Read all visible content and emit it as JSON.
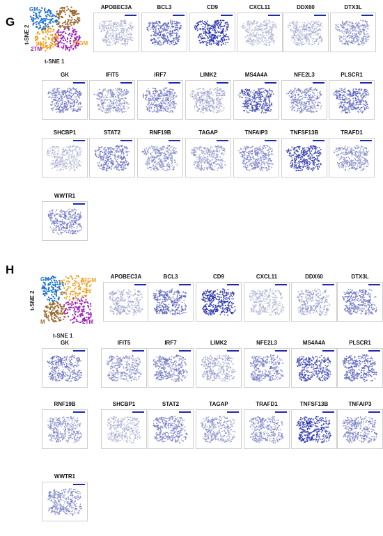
{
  "panel_g": {
    "letter": "G",
    "x_axis": "t-SNE 1",
    "y_axis": "t-SNE 2",
    "clusters": [
      {
        "label": "GM",
        "color": "#1a6fd1"
      },
      {
        "label": "M",
        "color": "#9b6a2f"
      },
      {
        "label": "2TGM",
        "color": "#f0a020"
      },
      {
        "label": "2TM",
        "color": "#9a1fb5"
      }
    ],
    "genes": [
      {
        "name": "APOBEC3A",
        "level": 0.12
      },
      {
        "name": "BCL3",
        "level": 0.6
      },
      {
        "name": "CD9",
        "level": 0.92
      },
      {
        "name": "CXCL11",
        "level": 0.08
      },
      {
        "name": "DDX60",
        "level": 0.15
      },
      {
        "name": "DTX3L",
        "level": 0.3
      },
      {
        "name": "GK",
        "level": 0.45
      },
      {
        "name": "IFIT5",
        "level": 0.3
      },
      {
        "name": "IRF7",
        "level": 0.4
      },
      {
        "name": "LIMK2",
        "level": 0.2
      },
      {
        "name": "MS4A4A",
        "level": 0.7
      },
      {
        "name": "NFE2L3",
        "level": 0.35
      },
      {
        "name": "PLSCR1",
        "level": 0.55
      },
      {
        "name": "SHCBP1",
        "level": 0.08
      },
      {
        "name": "STAT2",
        "level": 0.45
      },
      {
        "name": "RNF19B",
        "level": 0.3
      },
      {
        "name": "TAGAP",
        "level": 0.25
      },
      {
        "name": "TNFAIP3",
        "level": 0.4
      },
      {
        "name": "TNFSF13B",
        "level": 0.8
      },
      {
        "name": "TRAFD1",
        "level": 0.3
      },
      {
        "name": "WWTR1",
        "level": 0.4
      }
    ]
  },
  "panel_h": {
    "letter": "H",
    "x_axis": "t-SNE 1",
    "y_axis": "t-SNE 2",
    "clusters": [
      {
        "label": "GM",
        "color": "#1a6fd1"
      },
      {
        "label": "2TGM",
        "color": "#f0a020"
      },
      {
        "label": "M",
        "color": "#9b6a2f"
      },
      {
        "label": "2TM",
        "color": "#9a1fb5"
      }
    ],
    "genes": [
      {
        "name": "APOBEC3A",
        "level": 0.12
      },
      {
        "name": "BCL3",
        "level": 0.55
      },
      {
        "name": "CD9",
        "level": 0.92
      },
      {
        "name": "CXCL11",
        "level": 0.08
      },
      {
        "name": "DDX60",
        "level": 0.2
      },
      {
        "name": "DTX3L",
        "level": 0.45
      },
      {
        "name": "GK",
        "level": 0.45
      },
      {
        "name": "IFIT5",
        "level": 0.3
      },
      {
        "name": "IRF7",
        "level": 0.4
      },
      {
        "name": "LIMK2",
        "level": 0.2
      },
      {
        "name": "NFE2L3",
        "level": 0.4
      },
      {
        "name": "MS4A4A",
        "level": 0.7
      },
      {
        "name": "PLSCR1",
        "level": 0.55
      },
      {
        "name": "RNF19B",
        "level": 0.3
      },
      {
        "name": "SHCBP1",
        "level": 0.1
      },
      {
        "name": "STAT2",
        "level": 0.4
      },
      {
        "name": "TAGAP",
        "level": 0.25
      },
      {
        "name": "TRAFD1",
        "level": 0.35
      },
      {
        "name": "TNFSF13B",
        "level": 0.85
      },
      {
        "name": "TNFAIP3",
        "level": 0.4
      },
      {
        "name": "WWTR1",
        "level": 0.35
      }
    ]
  }
}
